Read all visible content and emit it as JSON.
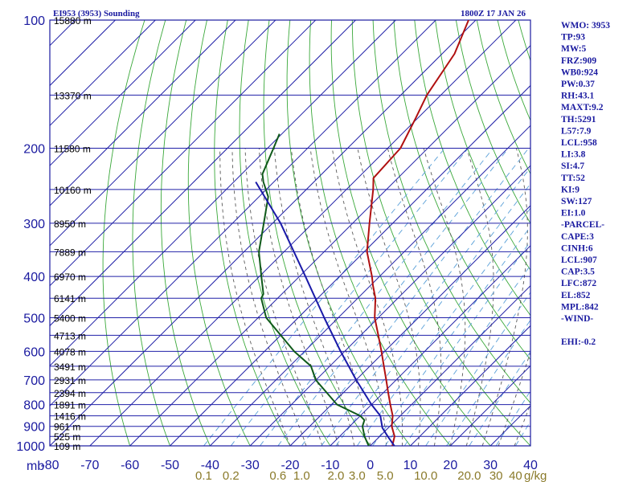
{
  "chart_data": {
    "type": "line",
    "title": "EI953 (3953) Sounding",
    "datetime": "1800Z 17 JAN 26",
    "pressure_axis": {
      "unit_label": "mb",
      "ticks": [
        100,
        200,
        300,
        400,
        500,
        600,
        700,
        800,
        900,
        1000
      ],
      "range": [
        100,
        1000
      ],
      "scale": "log"
    },
    "temperature_axis": {
      "ticks": [
        -80,
        -70,
        -60,
        -50,
        -40,
        -30,
        -20,
        -10,
        0,
        10,
        20,
        30,
        40
      ],
      "tick_labels": [
        "-80",
        "-70",
        "-60",
        "-50",
        "-40",
        "-30",
        "-20",
        "-10",
        "0",
        "10",
        "20",
        "30",
        "40"
      ],
      "range": [
        -80,
        40
      ],
      "skew": "45°"
    },
    "mixing_ratio_axis": {
      "unit_label": "g/kg",
      "ticks": [
        0.1,
        0.2,
        0.6,
        1.0,
        2.0,
        3.0,
        5.0,
        10.0,
        20.0,
        30.0,
        40.0
      ],
      "tick_labels": [
        "0.1",
        "0.2",
        "0.6",
        "1.0",
        "2.0",
        "3.0",
        "5.0",
        "10.0",
        "20.0",
        "30",
        "40"
      ]
    },
    "height_labels": [
      {
        "p": 100,
        "label": "15880 m"
      },
      {
        "p": 150,
        "label": "13370 m"
      },
      {
        "p": 200,
        "label": "11580 m"
      },
      {
        "p": 250,
        "label": "10160 m"
      },
      {
        "p": 300,
        "label": "8950 m"
      },
      {
        "p": 350,
        "label": "7889 m"
      },
      {
        "p": 400,
        "label": "6970 m"
      },
      {
        "p": 450,
        "label": "6141 m"
      },
      {
        "p": 500,
        "label": "5400 m"
      },
      {
        "p": 550,
        "label": "4713 m"
      },
      {
        "p": 600,
        "label": "4078 m"
      },
      {
        "p": 650,
        "label": "3491 m"
      },
      {
        "p": 700,
        "label": "2931 m"
      },
      {
        "p": 750,
        "label": "2394 m"
      },
      {
        "p": 800,
        "label": "1891 m"
      },
      {
        "p": 850,
        "label": "1416 m"
      },
      {
        "p": 900,
        "label": "961 m"
      },
      {
        "p": 950,
        "label": "525 m"
      },
      {
        "p": 1000,
        "label": "109 m"
      }
    ],
    "series": [
      {
        "color": "#b01010",
        "points": [
          {
            "p": 1000,
            "t": 5.5
          },
          {
            "p": 950,
            "t": 3.7
          },
          {
            "p": 900,
            "t": 0.5
          },
          {
            "p": 850,
            "t": -1.9
          },
          {
            "p": 800,
            "t": -5.3
          },
          {
            "p": 750,
            "t": -8.8
          },
          {
            "p": 700,
            "t": -12.5
          },
          {
            "p": 650,
            "t": -16.5
          },
          {
            "p": 600,
            "t": -20.8
          },
          {
            "p": 550,
            "t": -25.6
          },
          {
            "p": 500,
            "t": -30.9
          },
          {
            "p": 450,
            "t": -35.6
          },
          {
            "p": 420,
            "t": -39.4
          },
          {
            "p": 400,
            "t": -41.9
          },
          {
            "p": 350,
            "t": -49.3
          },
          {
            "p": 300,
            "t": -55.8
          },
          {
            "p": 250,
            "t": -63.3
          },
          {
            "p": 235,
            "t": -66.1
          },
          {
            "p": 200,
            "t": -66.8
          },
          {
            "p": 170,
            "t": -70.5
          },
          {
            "p": 150,
            "t": -73.5
          },
          {
            "p": 120,
            "t": -76.9
          },
          {
            "p": 100,
            "t": -81.8
          }
        ]
      },
      {
        "color": "#0f5a1a",
        "points": [
          {
            "p": 1000,
            "t": -0.4
          },
          {
            "p": 950,
            "t": -3.8
          },
          {
            "p": 900,
            "t": -6.8
          },
          {
            "p": 870,
            "t": -7.9
          },
          {
            "p": 850,
            "t": -10.0
          },
          {
            "p": 800,
            "t": -18.6
          },
          {
            "p": 700,
            "t": -30.1
          },
          {
            "p": 650,
            "t": -34.7
          },
          {
            "p": 600,
            "t": -42.6
          },
          {
            "p": 500,
            "t": -58.0
          },
          {
            "p": 450,
            "t": -64.1
          },
          {
            "p": 440,
            "t": -64.6
          },
          {
            "p": 400,
            "t": -69.5
          },
          {
            "p": 350,
            "t": -76.3
          },
          {
            "p": 300,
            "t": -82.2
          },
          {
            "p": 260,
            "t": -87.7
          },
          {
            "p": 240,
            "t": -92.6
          },
          {
            "p": 230,
            "t": -94.8
          },
          {
            "p": 200,
            "t": -98.5
          },
          {
            "p": 185,
            "t": -100.6
          }
        ]
      },
      {
        "color": "#1a1aa8",
        "points": [
          {
            "p": 1000,
            "t": 6.0
          },
          {
            "p": 950,
            "t": 2.0
          },
          {
            "p": 907,
            "t": -1.5
          },
          {
            "p": 850,
            "t": -5.0
          },
          {
            "p": 800,
            "t": -10.0
          },
          {
            "p": 700,
            "t": -20.0
          },
          {
            "p": 600,
            "t": -31.0
          },
          {
            "p": 500,
            "t": -43.5
          },
          {
            "p": 400,
            "t": -58.5
          },
          {
            "p": 300,
            "t": -78.0
          },
          {
            "p": 240,
            "t": -94.5
          }
        ]
      }
    ]
  },
  "indices": [
    "WMO: 3953",
    "TP:93",
    "MW:5",
    "FRZ:909",
    "WB0:924",
    "PW:0.37",
    "RH:43.1",
    "MAXT:9.2",
    "TH:5291",
    "L57:7.9",
    "LCL:958",
    "LI:3.8",
    "SI:4.7",
    "TT:52",
    "KI:9",
    "SW:127",
    "EI:1.0",
    "-PARCEL-",
    "CAPE:3",
    "CINH:6",
    "LCL:907",
    "CAP:3.5",
    "LFC:872",
    "EL:852",
    "MPL:842",
    "-WIND-",
    "",
    "EHI:-0.2"
  ],
  "colors": {
    "frame": "#1a1aa0",
    "isotherm": "#2020a8",
    "dry_adiabat": "#3aa83a",
    "moist_adiabat": "#5a5a5a",
    "mixing_ratio": "#5aa0d8",
    "mix_label": "#8a7a2a"
  }
}
